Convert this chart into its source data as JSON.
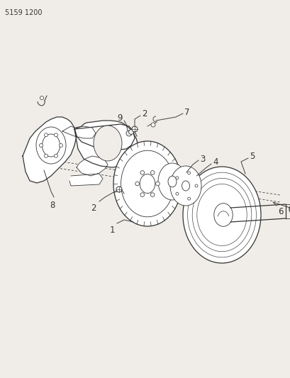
{
  "bg_color": "#f0ede8",
  "line_color": "#333333",
  "ref_code": "5159 1200",
  "ref_code_fontsize": 7.0,
  "axis_bg": "#f0ede8",
  "fig_w": 4.1,
  "fig_h": 5.33,
  "dpi": 100,
  "label_fontsize": 8.5
}
